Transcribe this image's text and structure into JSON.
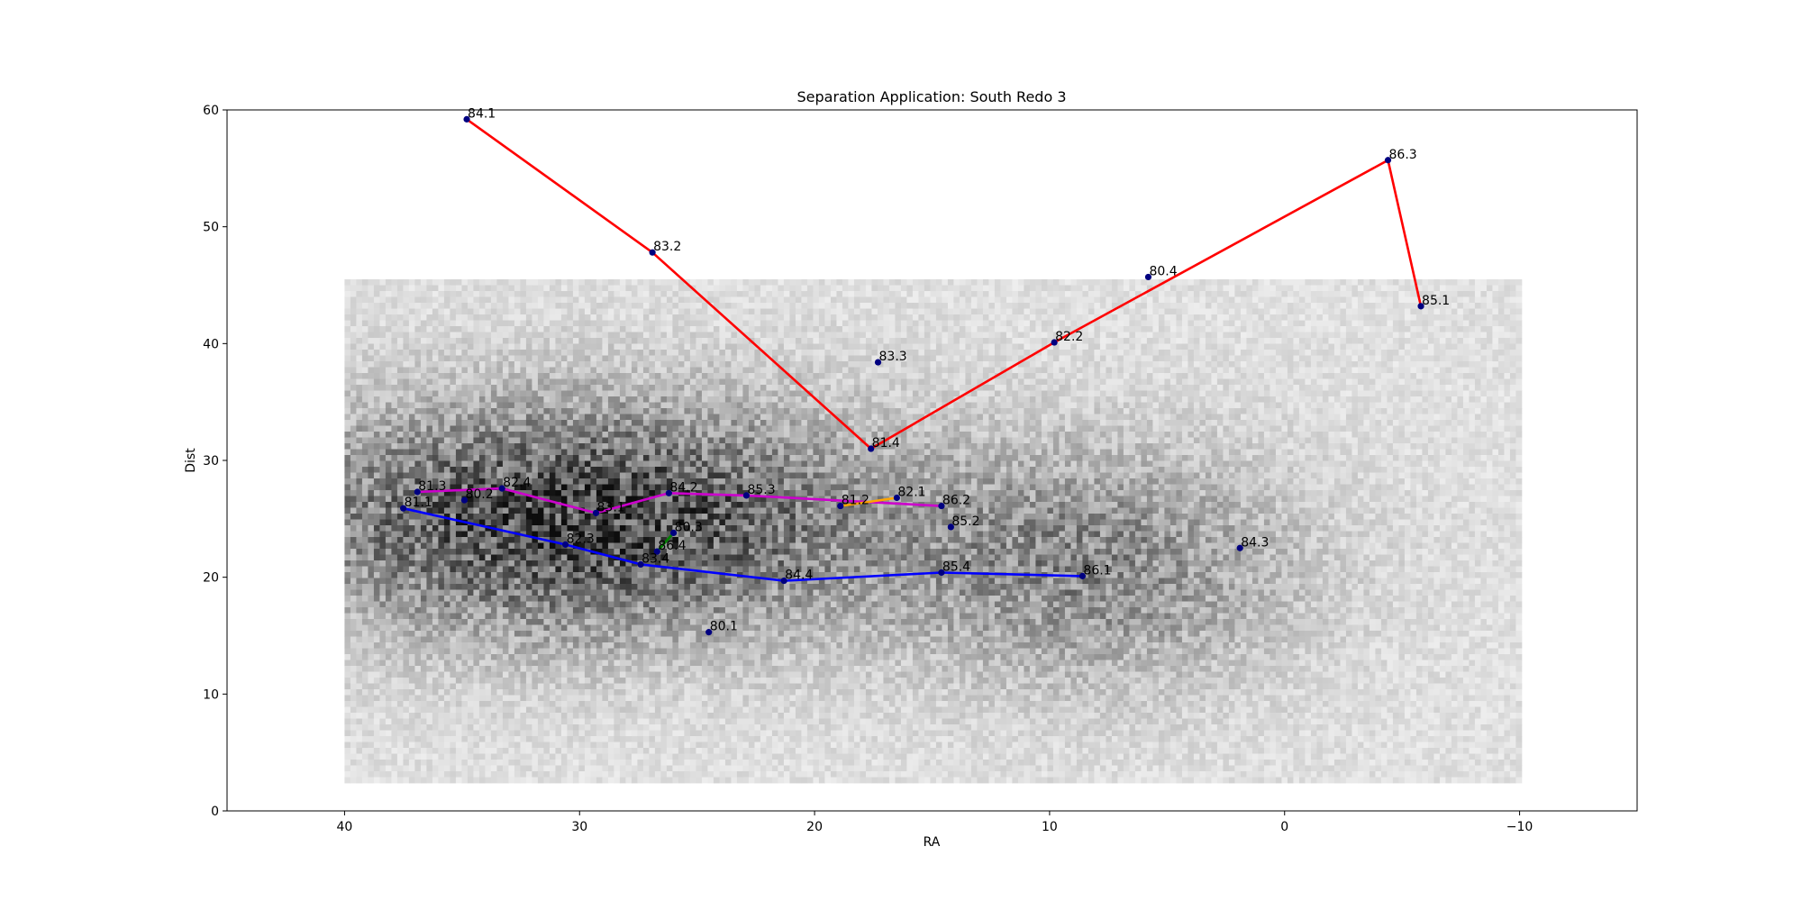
{
  "chart_data": {
    "type": "scatter",
    "title": "Separation Application: South Redo 3",
    "xlabel": "RA",
    "ylabel": "Dist",
    "xlim": [
      45,
      -15
    ],
    "ylim": [
      0,
      60
    ],
    "x_reversed": true,
    "xticks": [
      40,
      30,
      20,
      10,
      0,
      -10
    ],
    "xtick_labels": [
      "40",
      "30",
      "20",
      "10",
      "0",
      "−10"
    ],
    "yticks": [
      0,
      10,
      20,
      30,
      40,
      50,
      60
    ],
    "ytick_labels": [
      "0",
      "10",
      "20",
      "30",
      "40",
      "50",
      "60"
    ],
    "grid": false,
    "legend": "none",
    "background_histogram": {
      "type": "heatmap",
      "colormap": "greys",
      "x_range": [
        40,
        -10
      ],
      "y_range": [
        2.5,
        45.5
      ],
      "dense_regions": [
        {
          "x_center": 30,
          "y_center": 25,
          "strength": "high"
        },
        {
          "x_center": 8,
          "y_center": 21,
          "strength": "medium"
        }
      ]
    },
    "points": [
      {
        "label": "84.1",
        "x": 34.8,
        "y": 59.2
      },
      {
        "label": "83.2",
        "x": 26.9,
        "y": 47.8
      },
      {
        "label": "81.4",
        "x": 17.6,
        "y": 31.0
      },
      {
        "label": "82.2",
        "x": 9.8,
        "y": 40.1
      },
      {
        "label": "86.3",
        "x": -4.4,
        "y": 55.7
      },
      {
        "label": "85.1",
        "x": -5.8,
        "y": 43.2
      },
      {
        "label": "80.4",
        "x": 5.8,
        "y": 45.7
      },
      {
        "label": "83.3",
        "x": 17.3,
        "y": 38.4
      },
      {
        "label": "81.3",
        "x": 36.9,
        "y": 27.3
      },
      {
        "label": "80.2",
        "x": 34.9,
        "y": 26.6
      },
      {
        "label": "82.4",
        "x": 33.3,
        "y": 27.6
      },
      {
        "label": "83.1",
        "x": 29.3,
        "y": 25.5
      },
      {
        "label": "84.2",
        "x": 26.2,
        "y": 27.2
      },
      {
        "label": "85.3",
        "x": 22.9,
        "y": 27.0
      },
      {
        "label": "81.2",
        "x": 18.9,
        "y": 26.1
      },
      {
        "label": "82.1",
        "x": 16.5,
        "y": 26.8
      },
      {
        "label": "86.2",
        "x": 14.6,
        "y": 26.1
      },
      {
        "label": "85.2",
        "x": 14.2,
        "y": 24.3
      },
      {
        "label": "81.1",
        "x": 37.5,
        "y": 25.9
      },
      {
        "label": "82.3",
        "x": 30.6,
        "y": 22.8
      },
      {
        "label": "83.4",
        "x": 27.4,
        "y": 21.1
      },
      {
        "label": "86.4",
        "x": 26.7,
        "y": 22.2
      },
      {
        "label": "80.3",
        "x": 26.0,
        "y": 23.8
      },
      {
        "label": "84.4",
        "x": 21.3,
        "y": 19.7
      },
      {
        "label": "85.4",
        "x": 14.6,
        "y": 20.4
      },
      {
        "label": "86.1",
        "x": 8.6,
        "y": 20.1
      },
      {
        "label": "84.3",
        "x": 1.9,
        "y": 22.5
      },
      {
        "label": "80.1",
        "x": 24.5,
        "y": 15.3
      }
    ],
    "series": [
      {
        "color": "#ff0000",
        "points": [
          "84.1",
          "83.2",
          "81.4",
          "82.2",
          "86.3",
          "85.1"
        ]
      },
      {
        "color": "#cc00cc",
        "points": [
          "81.3",
          "82.4",
          "83.1",
          "84.2",
          "85.3",
          "86.2"
        ]
      },
      {
        "color": "#ffa500",
        "points": [
          "81.2",
          "82.1"
        ]
      },
      {
        "color": "#008000",
        "points": [
          "86.4",
          "80.3"
        ]
      },
      {
        "color": "#0000ff",
        "points": [
          "81.1",
          "82.3",
          "83.4",
          "84.4",
          "85.4",
          "86.1"
        ]
      }
    ],
    "marker_color": "#000080"
  }
}
